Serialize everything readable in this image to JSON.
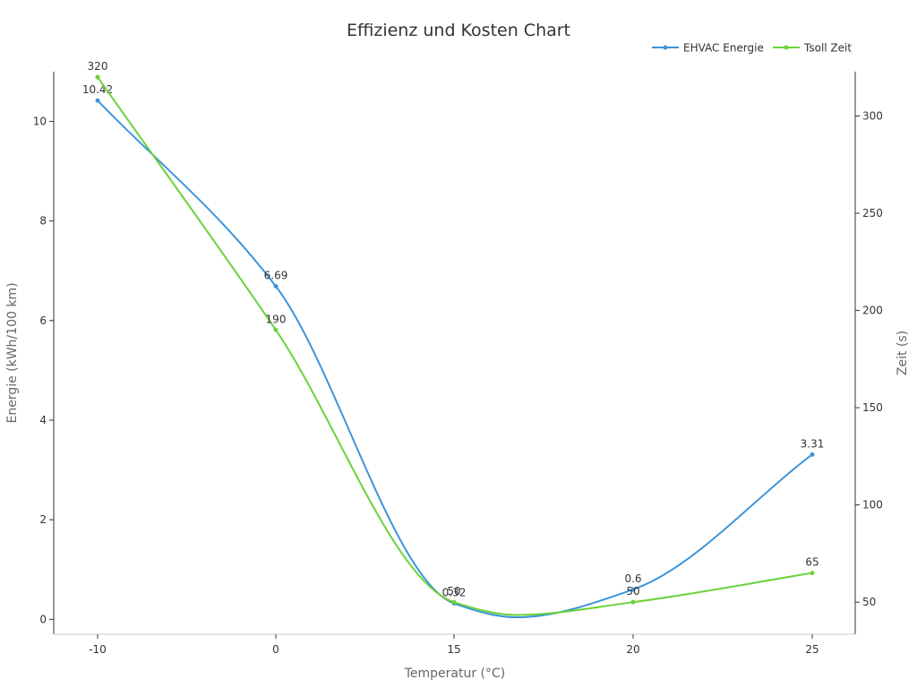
{
  "chart_data": {
    "type": "line",
    "title": "Effizienz und Kosten Chart",
    "categories": [
      "-10",
      "0",
      "15",
      "20",
      "25"
    ],
    "xlabel": "Temperatur (°C)",
    "ylabel_left": "Energie (kWh/100 km)",
    "ylabel_right": "Zeit (s)",
    "ylim_left": [
      -0.3,
      11.0
    ],
    "ylim_right": [
      33.5,
      322.8
    ],
    "yticks_left": [
      0,
      2,
      4,
      6,
      8,
      10
    ],
    "yticks_right": [
      50,
      100,
      150,
      200,
      250,
      300
    ],
    "legend_position": "top-right",
    "series": [
      {
        "name": "EHVAC Energie",
        "axis": "left",
        "color": "#3d95db",
        "values": [
          10.42,
          6.69,
          0.32,
          0.6,
          3.31
        ],
        "labels": [
          "10.42",
          "6.69",
          "0.32",
          "0.6",
          "3.31"
        ]
      },
      {
        "name": "Tsoll Zeit",
        "axis": "right",
        "color": "#6cd23a",
        "values": [
          320,
          190,
          50,
          50,
          65
        ],
        "labels": [
          "320",
          "190",
          "50",
          "50",
          "65"
        ]
      }
    ]
  }
}
